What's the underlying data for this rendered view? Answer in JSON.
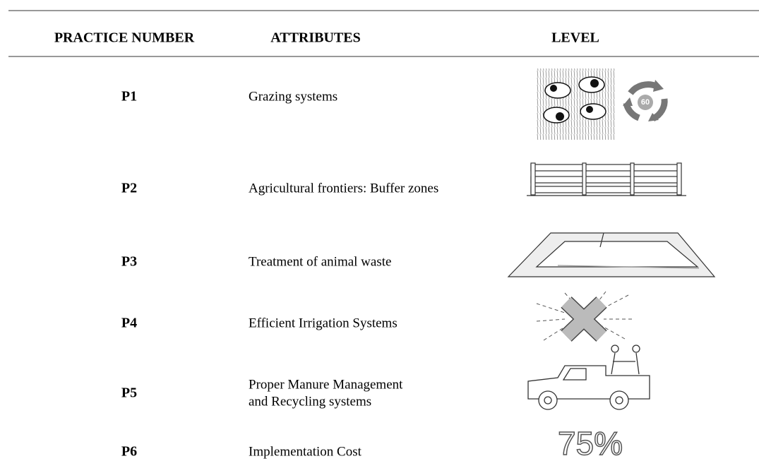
{
  "header": {
    "practice": "PRACTICE NUMBER",
    "attributes": "ATTRIBUTES",
    "level": "LEVEL"
  },
  "rows": [
    {
      "practice": "P1",
      "attribute": [
        "Grazing systems"
      ],
      "level_text": "60"
    },
    {
      "practice": "P2",
      "attribute": [
        "Agricultural frontiers: Buffer zones"
      ]
    },
    {
      "practice": "P3",
      "attribute": [
        "Treatment of animal waste"
      ]
    },
    {
      "practice": "P4",
      "attribute": [
        "Efficient Irrigation Systems"
      ]
    },
    {
      "practice": "P5",
      "attribute": [
        "Proper Manure Management",
        "and Recycling systems"
      ]
    },
    {
      "practice": "P6",
      "attribute": [
        "Implementation Cost"
      ],
      "level_text": "75%"
    }
  ]
}
